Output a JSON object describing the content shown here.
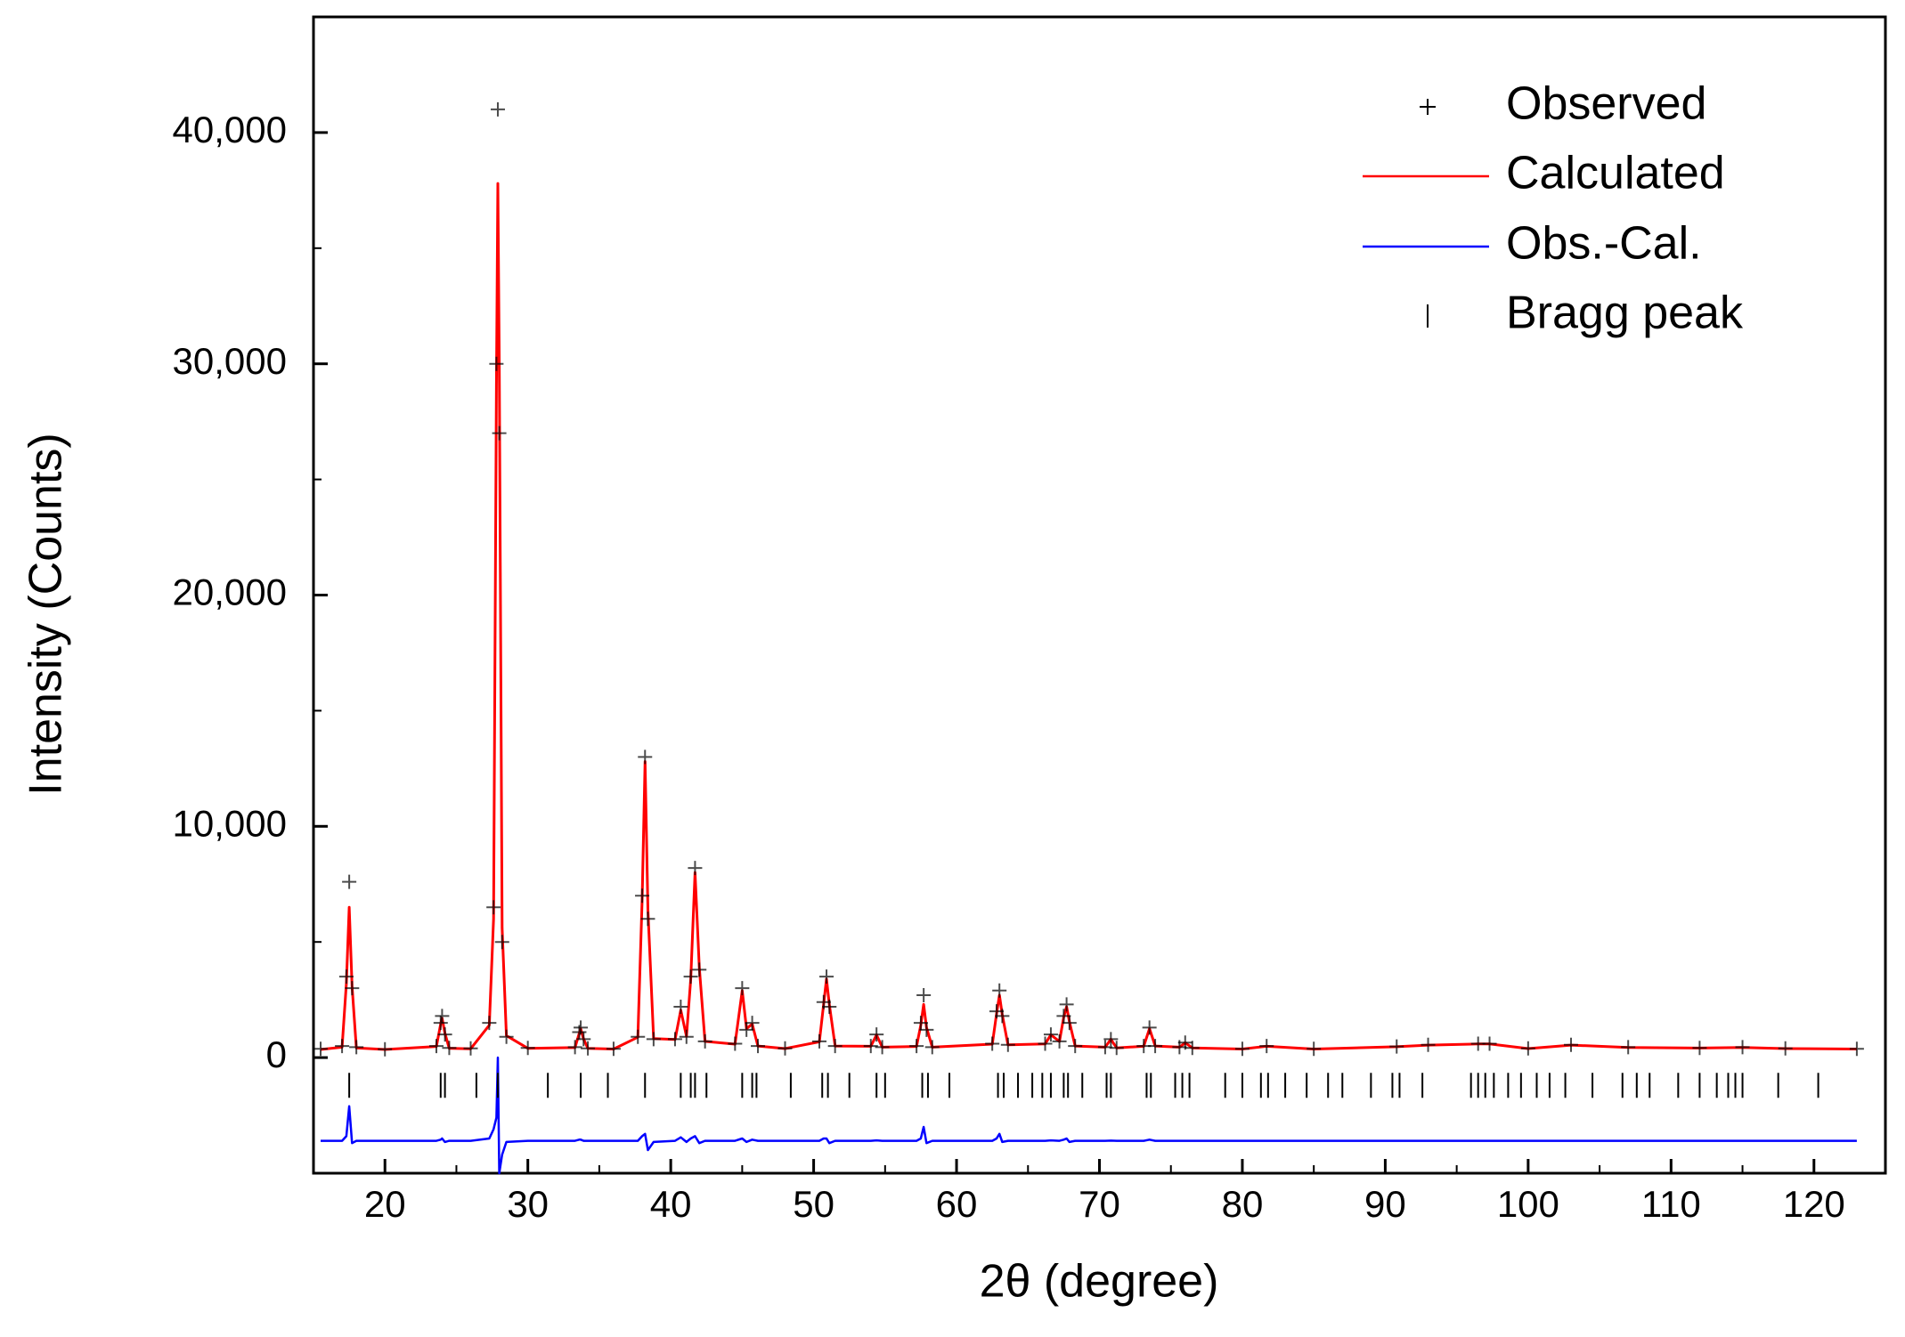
{
  "chart_data": {
    "type": "rietveld",
    "xlabel": "2θ (degree)",
    "ylabel": "Intensity (Counts)",
    "xlim": [
      15,
      125
    ],
    "ylim": [
      -5000,
      45000
    ],
    "xticks": [
      20,
      30,
      40,
      50,
      60,
      70,
      80,
      90,
      100,
      110,
      120
    ],
    "xminorticks": [
      25,
      35,
      45,
      55,
      65,
      75,
      85,
      95,
      105,
      115
    ],
    "yticks": [
      0,
      {
        "value": 10000,
        "label": "10,000"
      },
      {
        "value": 20000,
        "label": "20,000"
      },
      {
        "value": 30000,
        "label": "30,000"
      },
      {
        "value": 40000,
        "label": "40,000"
      }
    ],
    "yminorticks": [
      5000,
      15000,
      25000,
      35000
    ],
    "legend": "upper right",
    "x": [
      15.5,
      17.0,
      17.3,
      17.5,
      17.7,
      18.0,
      20.0,
      23.6,
      23.9,
      24.0,
      24.2,
      24.5,
      26.0,
      27.3,
      27.6,
      27.8,
      27.9,
      28.0,
      28.2,
      28.5,
      30.0,
      33.3,
      33.6,
      33.7,
      33.9,
      34.2,
      36.0,
      37.7,
      38.0,
      38.2,
      38.4,
      38.8,
      40.3,
      40.7,
      41.1,
      41.4,
      41.7,
      42.0,
      42.4,
      44.5,
      45.0,
      45.3,
      45.7,
      46.1,
      48.0,
      50.4,
      50.7,
      50.9,
      51.1,
      51.5,
      54.0,
      54.4,
      54.8,
      57.2,
      57.5,
      57.7,
      57.9,
      58.3,
      62.5,
      62.8,
      63.0,
      63.2,
      63.6,
      66.2,
      66.6,
      67.2,
      67.5,
      67.7,
      67.9,
      68.3,
      70.4,
      70.8,
      71.2,
      73.1,
      73.5,
      73.9,
      75.6,
      76.0,
      76.5,
      80.0,
      81.7,
      85.0,
      90.8,
      93.0,
      96.5,
      97.3,
      100.0,
      103.0,
      107.0,
      112.0,
      115.0,
      118.0,
      123.0
    ],
    "series": [
      {
        "name": "Observed",
        "color": "#000000",
        "style": "marker",
        "values": [
          380,
          500,
          3500,
          7600,
          3000,
          450,
          360,
          500,
          1500,
          1800,
          1000,
          420,
          400,
          1500,
          6500,
          30000,
          41000,
          27000,
          5000,
          900,
          420,
          450,
          1100,
          1300,
          800,
          400,
          380,
          900,
          7000,
          13000,
          6000,
          800,
          800,
          2200,
          900,
          3500,
          8200,
          3800,
          700,
          600,
          3000,
          1200,
          1500,
          500,
          400,
          700,
          2400,
          3500,
          2200,
          500,
          500,
          1000,
          450,
          500,
          1500,
          2700,
          1200,
          450,
          600,
          2000,
          2900,
          1800,
          550,
          600,
          1000,
          700,
          1800,
          2300,
          1500,
          500,
          450,
          800,
          420,
          500,
          1300,
          500,
          450,
          650,
          420,
          380,
          500,
          380,
          480,
          550,
          600,
          600,
          400,
          550,
          450,
          420,
          450,
          400,
          380
        ]
      },
      {
        "name": "Calculated",
        "color": "#ff0000",
        "style": "line",
        "values": [
          350,
          450,
          3200,
          6500,
          3100,
          420,
          350,
          480,
          1450,
          1700,
          1050,
          400,
          380,
          1400,
          6000,
          29000,
          37800,
          30000,
          5600,
          950,
          400,
          430,
          1050,
          1250,
          800,
          400,
          370,
          880,
          6800,
          12800,
          6400,
          820,
          780,
          2050,
          920,
          3400,
          8000,
          3900,
          700,
          580,
          2900,
          1250,
          1450,
          500,
          390,
          680,
          2300,
          3400,
          2300,
          500,
          490,
          980,
          450,
          480,
          1400,
          2300,
          1300,
          450,
          580,
          1900,
          2700,
          1850,
          550,
          590,
          980,
          700,
          1750,
          2200,
          1550,
          500,
          450,
          790,
          420,
          490,
          1250,
          500,
          450,
          640,
          420,
          370,
          490,
          370,
          470,
          540,
          590,
          590,
          390,
          540,
          440,
          410,
          440,
          390,
          370
        ]
      },
      {
        "name": "Obs.-Cal.",
        "color": "#0000ff",
        "style": "line",
        "values": [
          -3600,
          -3600,
          -3400,
          -2100,
          -3700,
          -3600,
          -3600,
          -3600,
          -3550,
          -3500,
          -3650,
          -3600,
          -3600,
          -3500,
          -3100,
          -2600,
          0,
          -5000,
          -4200,
          -3650,
          -3600,
          -3600,
          -3550,
          -3550,
          -3600,
          -3600,
          -3600,
          -3600,
          -3400,
          -3300,
          -4000,
          -3650,
          -3600,
          -3450,
          -3650,
          -3500,
          -3400,
          -3700,
          -3600,
          -3600,
          -3500,
          -3650,
          -3550,
          -3600,
          -3600,
          -3600,
          -3500,
          -3500,
          -3700,
          -3600,
          -3600,
          -3580,
          -3600,
          -3600,
          -3500,
          -3000,
          -3700,
          -3600,
          -3600,
          -3500,
          -3300,
          -3650,
          -3600,
          -3600,
          -3580,
          -3600,
          -3550,
          -3500,
          -3650,
          -3600,
          -3600,
          -3590,
          -3600,
          -3600,
          -3550,
          -3600,
          -3600,
          -3600,
          -3600,
          -3600,
          -3600,
          -3600,
          -3600,
          -3600,
          -3600,
          -3600,
          -3600,
          -3600,
          -3600,
          -3600,
          -3600,
          -3600,
          -3600
        ]
      }
    ],
    "bragg_peaks": {
      "name": "Bragg peak",
      "color": "#000000",
      "x": [
        17.5,
        23.9,
        24.2,
        26.4,
        27.9,
        31.4,
        33.7,
        35.6,
        38.2,
        40.7,
        41.4,
        41.7,
        42.5,
        45.0,
        45.7,
        46.0,
        48.4,
        50.6,
        51.0,
        52.5,
        54.4,
        55.0,
        57.6,
        58.0,
        59.5,
        62.9,
        63.3,
        64.3,
        65.3,
        66.0,
        66.6,
        67.5,
        67.8,
        68.8,
        70.5,
        70.8,
        73.3,
        73.6,
        75.3,
        75.8,
        76.3,
        78.8,
        80.0,
        81.3,
        81.8,
        83.0,
        84.5,
        86.0,
        87.0,
        89.0,
        90.5,
        91.0,
        92.6,
        96.0,
        96.5,
        97.0,
        97.6,
        98.6,
        99.5,
        100.6,
        101.5,
        102.6,
        104.5,
        106.6,
        107.6,
        108.5,
        110.5,
        112.0,
        113.2,
        114.0,
        114.5,
        115.0,
        117.5,
        120.3
      ]
    }
  }
}
